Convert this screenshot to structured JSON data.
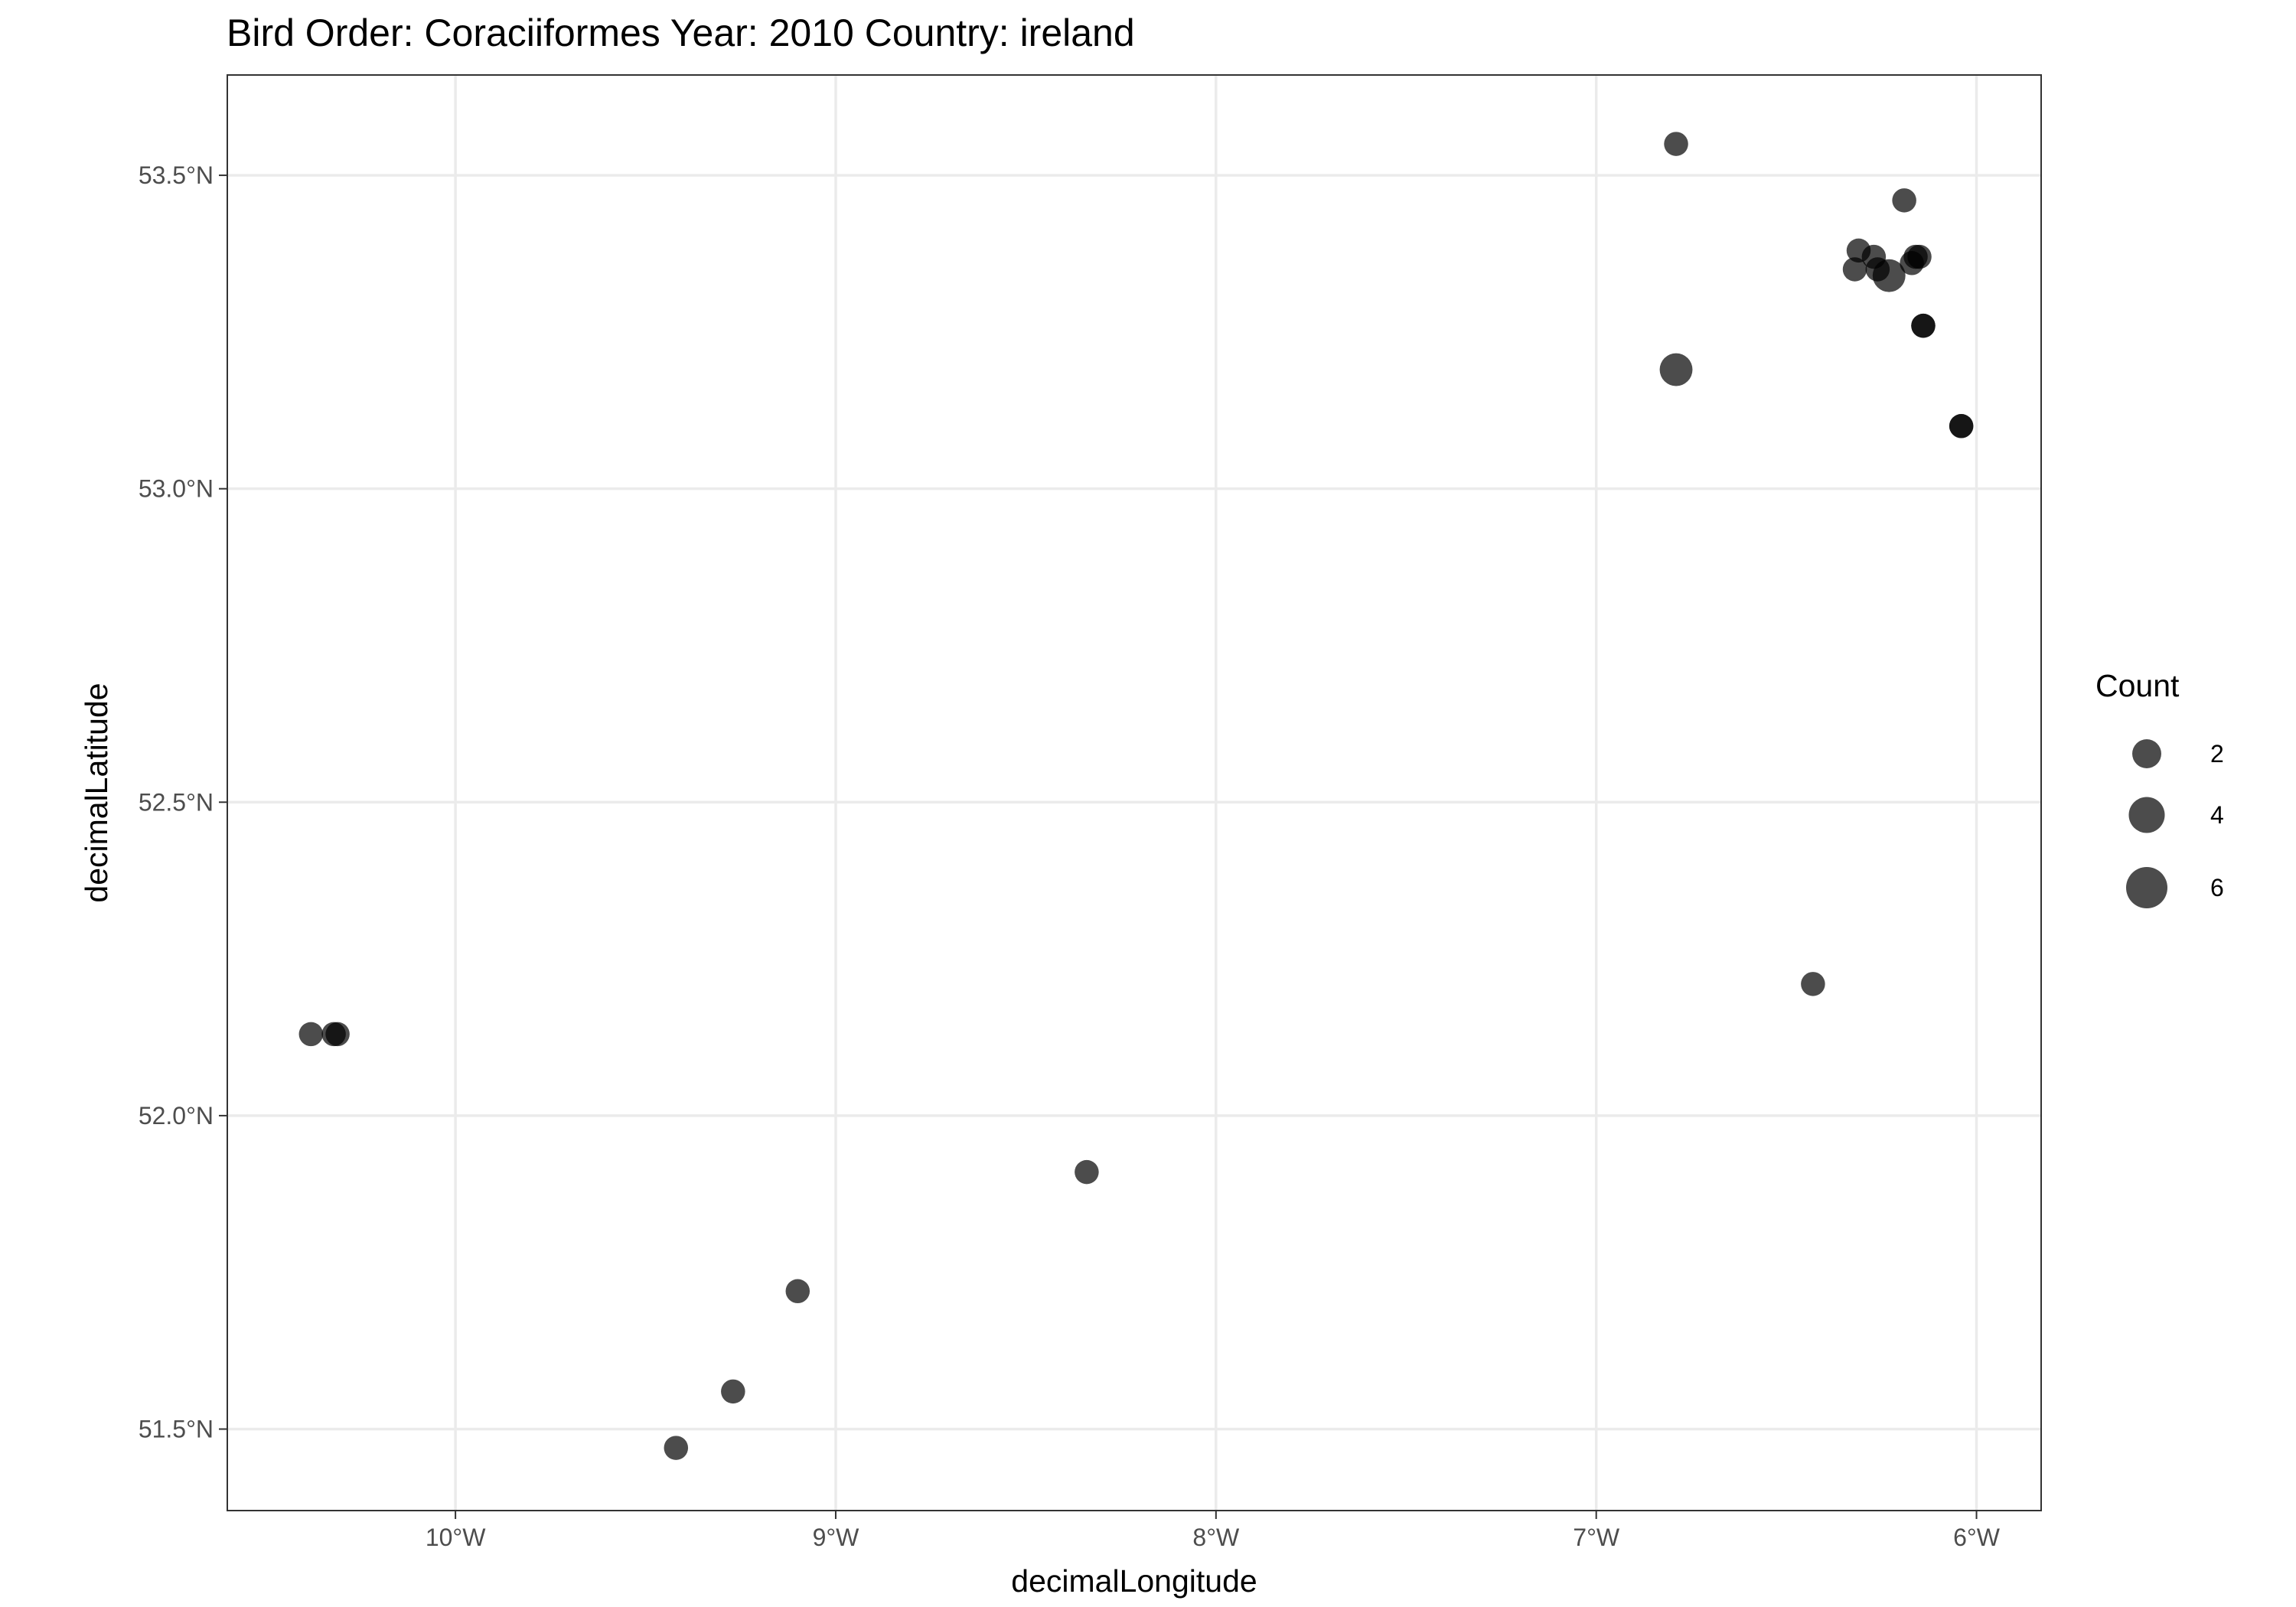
{
  "chart_data": {
    "type": "scatter",
    "title": "Bird Order: Coraciiformes Year: 2010 Country: ireland",
    "xlabel": "decimalLongitude",
    "ylabel": "decimalLatitude",
    "xlim": [
      -10.6,
      -5.83
    ],
    "ylim": [
      51.37,
      53.66
    ],
    "x_ticks": [
      -10,
      -9,
      -8,
      -7,
      -6
    ],
    "x_tick_labels": [
      "10°W",
      "9°W",
      "8°W",
      "7°W",
      "6°W"
    ],
    "y_ticks": [
      51.5,
      52.0,
      52.5,
      53.0,
      53.5
    ],
    "y_tick_labels": [
      "51.5°N",
      "52.0°N",
      "52.5°N",
      "53.0°N",
      "53.5°N"
    ],
    "grid": true,
    "point_color": "#000000",
    "point_opacity": 0.7,
    "legend": {
      "title": "Count",
      "position": "right",
      "entries": [
        {
          "label": "2",
          "value": 2
        },
        {
          "label": "4",
          "value": 4
        },
        {
          "label": "6",
          "value": 6
        }
      ]
    },
    "points": [
      {
        "x": -6.79,
        "y": 53.55,
        "count": 1
      },
      {
        "x": -6.19,
        "y": 53.46,
        "count": 1
      },
      {
        "x": -6.31,
        "y": 53.38,
        "count": 1
      },
      {
        "x": -6.27,
        "y": 53.37,
        "count": 1
      },
      {
        "x": -6.15,
        "y": 53.37,
        "count": 1
      },
      {
        "x": -6.16,
        "y": 53.37,
        "count": 1
      },
      {
        "x": -6.32,
        "y": 53.35,
        "count": 1
      },
      {
        "x": -6.26,
        "y": 53.35,
        "count": 1
      },
      {
        "x": -6.17,
        "y": 53.36,
        "count": 1
      },
      {
        "x": -6.23,
        "y": 53.34,
        "count": 3
      },
      {
        "x": -6.14,
        "y": 53.26,
        "count": 1
      },
      {
        "x": -6.14,
        "y": 53.26,
        "count": 1
      },
      {
        "x": -6.79,
        "y": 53.19,
        "count": 3
      },
      {
        "x": -6.04,
        "y": 53.1,
        "count": 1
      },
      {
        "x": -6.04,
        "y": 53.1,
        "count": 1
      },
      {
        "x": -6.43,
        "y": 52.21,
        "count": 1
      },
      {
        "x": -10.38,
        "y": 52.13,
        "count": 1
      },
      {
        "x": -10.32,
        "y": 52.13,
        "count": 1
      },
      {
        "x": -10.31,
        "y": 52.13,
        "count": 1
      },
      {
        "x": -8.34,
        "y": 51.91,
        "count": 1
      },
      {
        "x": -9.1,
        "y": 51.72,
        "count": 1
      },
      {
        "x": -9.27,
        "y": 51.56,
        "count": 1
      },
      {
        "x": -9.42,
        "y": 51.47,
        "count": 1
      }
    ]
  }
}
